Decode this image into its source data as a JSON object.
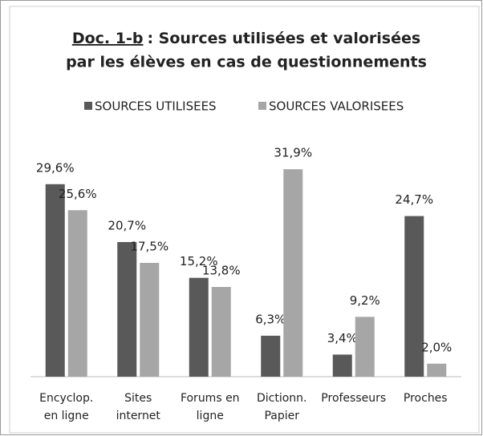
{
  "chart_data": {
    "type": "bar",
    "title": [
      "Doc. 1-b",
      ": Sources utilisées et valorisées",
      "par les élèves en cas de questionnements"
    ],
    "categories": [
      [
        "Encyclop.",
        "en ligne"
      ],
      [
        "Sites",
        "internet"
      ],
      [
        "Forums en",
        "ligne"
      ],
      [
        "Dictionn.",
        "Papier"
      ],
      [
        "Professeurs"
      ],
      [
        "Proches"
      ]
    ],
    "series": [
      {
        "name": "SOURCES UTILISEES",
        "color": "#595959",
        "values": [
          29.6,
          20.7,
          15.2,
          6.3,
          3.4,
          24.7
        ],
        "value_labels": [
          "29,6%",
          "20,7%",
          "15,2%",
          "6,3%",
          "3,4%",
          "24,7%"
        ]
      },
      {
        "name": "SOURCES VALORISEES",
        "color": "#a6a6a6",
        "values": [
          25.6,
          17.5,
          13.8,
          31.9,
          9.2,
          2.0
        ],
        "value_labels": [
          "25,6%",
          "17,5%",
          "13,8%",
          "31,9%",
          "9,2%",
          "2,0%"
        ]
      }
    ],
    "ylim": [
      0,
      35
    ],
    "legend": "top"
  }
}
